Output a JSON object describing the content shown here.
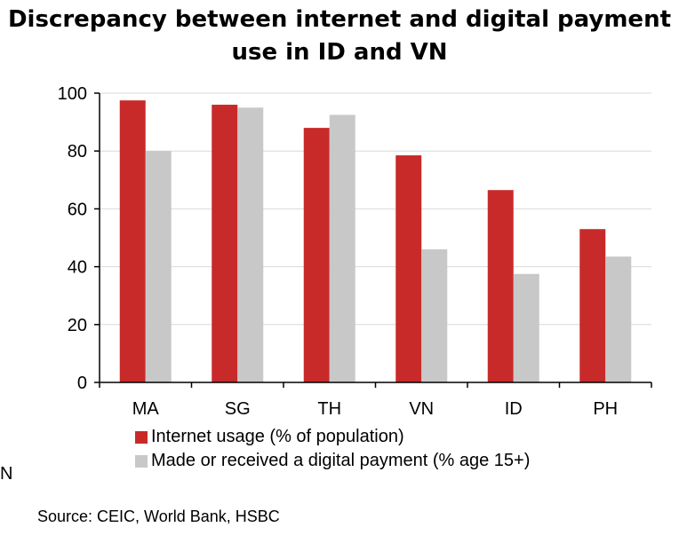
{
  "title_lines": [
    "Discrepancy between internet and digital payment",
    "use in ID and VN"
  ],
  "edge_text": "N",
  "source": "Source: CEIC, World Bank, HSBC",
  "colors": {
    "series1": "#c82a2a",
    "series2": "#c8c8c8",
    "grid": "#d9d9d9",
    "axis": "#000000"
  },
  "chart_data": {
    "type": "bar",
    "title": "Discrepancy between internet and digital payment use in ID and VN",
    "categories": [
      "MA",
      "SG",
      "TH",
      "VN",
      "ID",
      "PH"
    ],
    "series": [
      {
        "name": "Internet usage (% of population)",
        "values": [
          97.5,
          96,
          88,
          78.5,
          66.5,
          53
        ]
      },
      {
        "name": "Made or received a digital payment (% age 15+)",
        "values": [
          80,
          95,
          92.5,
          46,
          37.5,
          43.5
        ]
      }
    ],
    "yticks": [
      0,
      20,
      40,
      60,
      80,
      100
    ],
    "ylim": [
      0,
      100
    ],
    "xlabel": "",
    "ylabel": "",
    "grid": true,
    "legend_position": "bottom-left"
  }
}
